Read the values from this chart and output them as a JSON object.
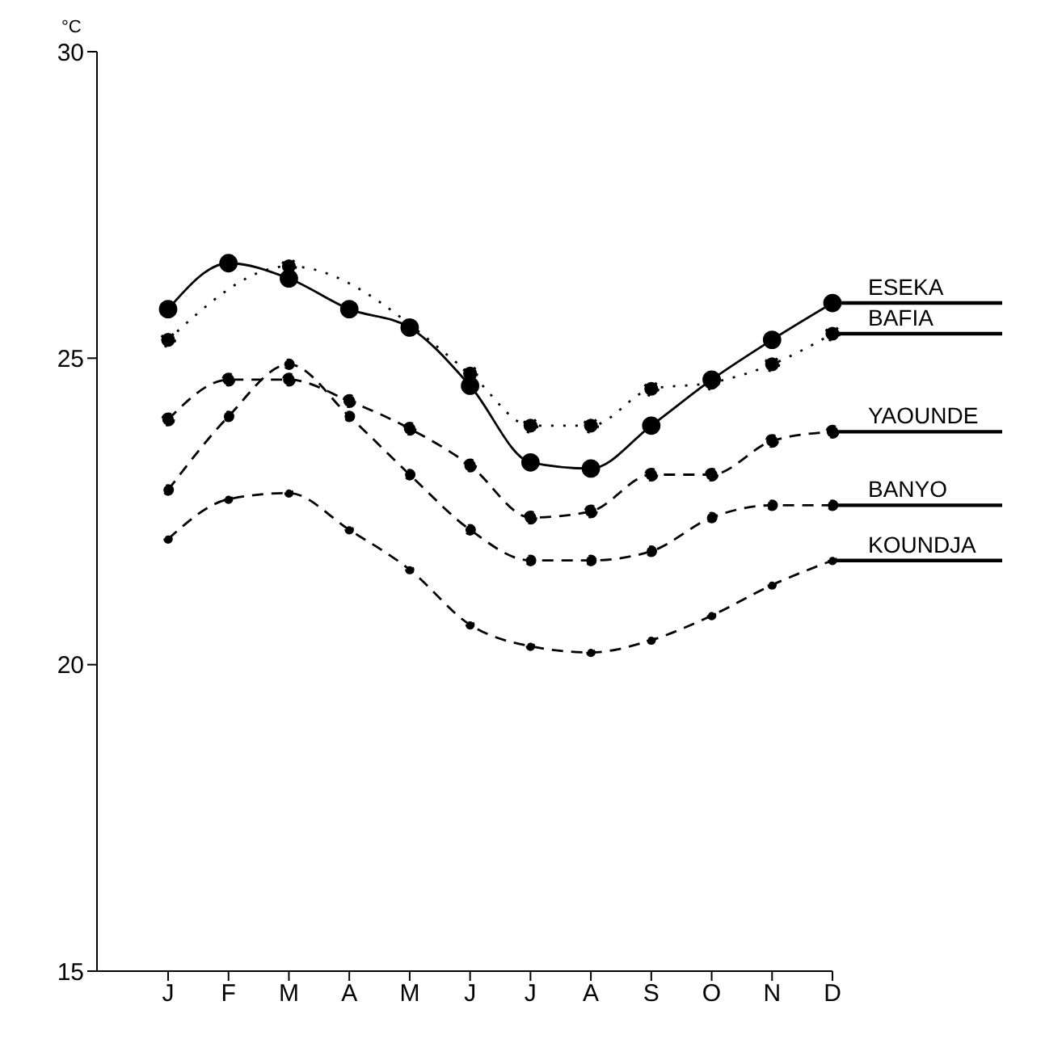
{
  "chart_data": {
    "type": "line",
    "ylabel": "°C",
    "categories": [
      "J",
      "F",
      "M",
      "A",
      "M",
      "J",
      "J",
      "A",
      "S",
      "O",
      "N",
      "D"
    ],
    "series": [
      {
        "name": "ESEKA",
        "color": "#000000",
        "line_style": "solid",
        "values": [
          25.8,
          26.55,
          26.3,
          25.8,
          25.5,
          24.55,
          23.3,
          23.2,
          23.9,
          24.65,
          25.3,
          25.9
        ]
      },
      {
        "name": "BAFIA",
        "color": "#000000",
        "line_style": "dotted",
        "values": [
          25.3,
          null,
          26.5,
          null,
          null,
          24.75,
          23.9,
          23.9,
          24.5,
          24.6,
          24.9,
          25.4
        ]
      },
      {
        "name": "YAOUNDE",
        "color": "#000000",
        "line_style": "dashed",
        "values": [
          24.0,
          24.65,
          24.65,
          24.3,
          23.85,
          23.25,
          22.4,
          22.5,
          23.1,
          23.1,
          23.65,
          23.8
        ]
      },
      {
        "name": "BANYO",
        "color": "#000000",
        "line_style": "dashed",
        "values": [
          22.85,
          24.05,
          24.9,
          24.05,
          23.1,
          22.2,
          21.7,
          21.7,
          21.85,
          22.4,
          22.6,
          22.6
        ]
      },
      {
        "name": "KOUNDJA",
        "color": "#000000",
        "line_style": "dashed",
        "values": [
          22.05,
          22.7,
          22.8,
          22.2,
          21.55,
          20.65,
          20.3,
          20.2,
          20.4,
          20.8,
          21.3,
          21.7
        ]
      }
    ],
    "ylim": [
      15,
      30
    ],
    "yticks": [
      15,
      20,
      25,
      30
    ],
    "grid": false,
    "legend": false,
    "marker": "circle"
  }
}
